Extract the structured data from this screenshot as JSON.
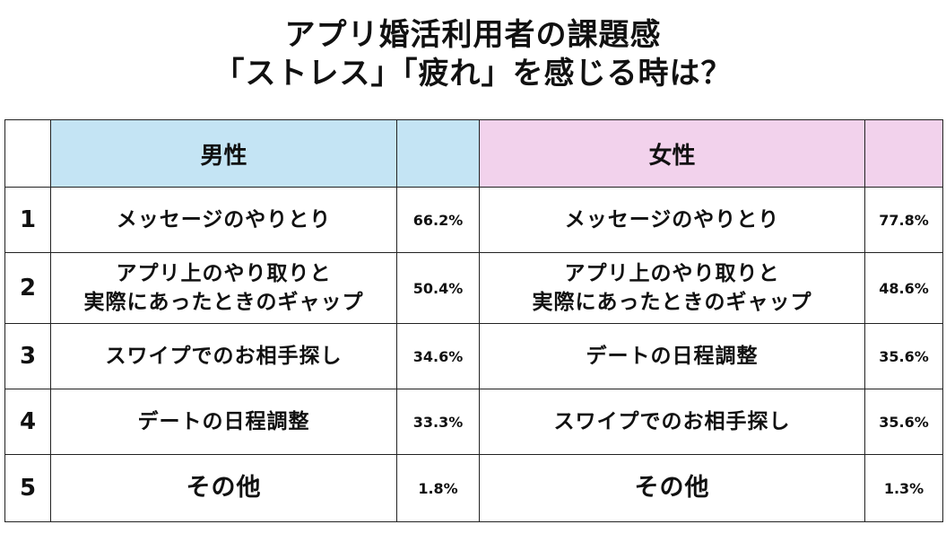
{
  "title": {
    "line1": "アプリ婚活利用者の課題感",
    "line2": "「ストレス」「疲れ」を感じる時は？"
  },
  "headers": {
    "rank": "",
    "male": "男性",
    "female": "女性"
  },
  "rows": [
    {
      "rank": "1",
      "male_item": "メッセージのやりとり",
      "male_pct": "66.2%",
      "female_item": "メッセージのやりとり",
      "female_pct": "77.8%"
    },
    {
      "rank": "2",
      "male_item": "アプリ上のやり取りと\n実際にあったときのギャップ",
      "male_pct": "50.4%",
      "female_item": "アプリ上のやり取りと\n実際にあったときのギャップ",
      "female_pct": "48.6%"
    },
    {
      "rank": "3",
      "male_item": "スワイプでのお相手探し",
      "male_pct": "34.6%",
      "female_item": "デートの日程調整",
      "female_pct": "35.6%"
    },
    {
      "rank": "4",
      "male_item": "デートの日程調整",
      "male_pct": "33.3%",
      "female_item": "スワイプでのお相手探し",
      "female_pct": "35.6%"
    },
    {
      "rank": "5",
      "male_item": "その他",
      "male_pct": "1.8%",
      "female_item": "その他",
      "female_pct": "1.3%"
    }
  ],
  "colors": {
    "male_header": "#c4e4f4",
    "female_header": "#f2d2ec",
    "border": "#222222"
  },
  "chart_data": {
    "type": "table",
    "title": "アプリ婚活利用者の課題感 「ストレス」「疲れ」を感じる時は？",
    "columns": [
      "",
      "男性",
      "",
      "女性",
      ""
    ],
    "series": [
      {
        "name": "男性",
        "categories": [
          "メッセージのやりとり",
          "アプリ上のやり取りと実際にあったときのギャップ",
          "スワイプでのお相手探し",
          "デートの日程調整",
          "その他"
        ],
        "values": [
          66.2,
          50.4,
          34.6,
          33.3,
          1.8
        ]
      },
      {
        "name": "女性",
        "categories": [
          "メッセージのやりとり",
          "アプリ上のやり取りと実際にあったときのギャップ",
          "デートの日程調整",
          "スワイプでのお相手探し",
          "その他"
        ],
        "values": [
          77.8,
          48.6,
          35.6,
          35.6,
          1.3
        ]
      }
    ]
  }
}
